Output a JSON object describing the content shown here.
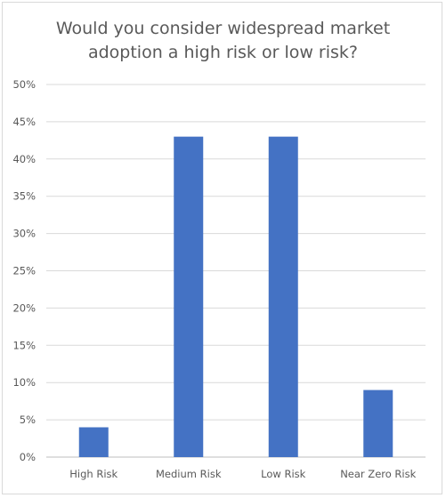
{
  "chart_data": {
    "type": "bar",
    "title_lines": [
      "Would you consider widespread market",
      "adoption a high risk or low risk?"
    ],
    "categories": [
      "High Risk",
      "Medium Risk",
      "Low Risk",
      "Near Zero Risk"
    ],
    "values": [
      4,
      43,
      43,
      9
    ],
    "y_unit": "%",
    "ylim": [
      0,
      50
    ],
    "y_ticks": [
      0,
      5,
      10,
      15,
      20,
      25,
      30,
      35,
      40,
      45,
      50
    ],
    "y_tick_labels": [
      "0%",
      "5%",
      "10%",
      "15%",
      "20%",
      "25%",
      "30%",
      "35%",
      "40%",
      "45%",
      "50%"
    ],
    "grid": true,
    "bar_color": "#4472c4",
    "grid_color": "#d9d9d9"
  }
}
